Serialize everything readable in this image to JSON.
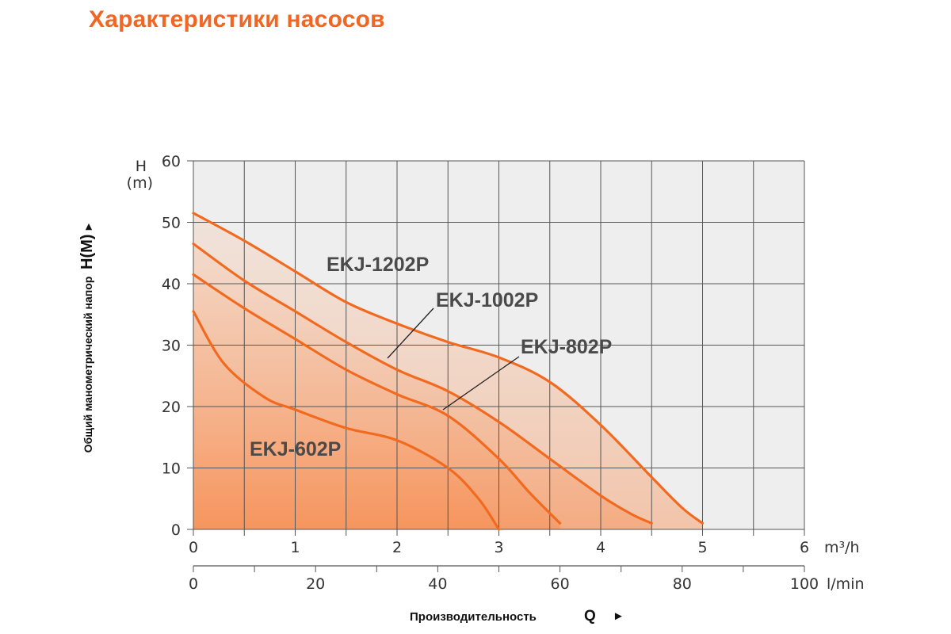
{
  "page": {
    "title": "Характеристики насосов"
  },
  "colors": {
    "title": "#f26522",
    "curve": "#f26a1f",
    "grid": "#555555",
    "plot_bg": "#eeeeee",
    "label": "#4a4a4a"
  },
  "chart_data": {
    "type": "line",
    "title": "",
    "ylabel_unit_h": "H",
    "ylabel_unit_m": "(m)",
    "ylabel": "Общий манометрический напор",
    "ylabel_symbol": "H(M)",
    "ylabel_arrow": "►",
    "xlabel": "Производительность",
    "xlabel_symbol": "Q",
    "xlabel_arrow": "►",
    "x_unit_primary": "m³/h",
    "x_unit_secondary": "l/min",
    "xlim": [
      0,
      6
    ],
    "ylim": [
      0,
      60
    ],
    "x_ticks": [
      "0",
      "1",
      "2",
      "3",
      "4",
      "5",
      "6"
    ],
    "x_secondary_ticks": [
      "0",
      "20",
      "40",
      "60",
      "80",
      "100"
    ],
    "x_secondary_values": [
      0,
      20,
      40,
      60,
      80,
      100
    ],
    "y_ticks": [
      "0",
      "10",
      "20",
      "30",
      "40",
      "50",
      "60"
    ],
    "y_tick_values": [
      0,
      10,
      20,
      30,
      40,
      50,
      60
    ],
    "grid": true,
    "series": [
      {
        "name": "EKJ-1202P",
        "x": [
          0,
          0.5,
          1,
          1.5,
          2,
          2.5,
          3,
          3.5,
          4,
          4.5,
          4.8,
          5.0
        ],
        "y": [
          51.5,
          47,
          42,
          37,
          33.5,
          30.5,
          28,
          24,
          17,
          8.5,
          3.5,
          1
        ]
      },
      {
        "name": "EKJ-1002P",
        "x": [
          0,
          0.5,
          1,
          1.5,
          2,
          2.5,
          3,
          3.5,
          4,
          4.3,
          4.5
        ],
        "y": [
          46.5,
          40.5,
          35.5,
          30.5,
          26,
          22.5,
          17.5,
          11.5,
          5.5,
          2.5,
          1
        ]
      },
      {
        "name": "EKJ-802P",
        "x": [
          0,
          0.5,
          1,
          1.5,
          2,
          2.5,
          3,
          3.3,
          3.6
        ],
        "y": [
          41.5,
          36,
          31,
          26,
          22,
          18.5,
          11.5,
          6,
          1
        ]
      },
      {
        "name": "EKJ-602P",
        "x": [
          0,
          0.3,
          0.7,
          1,
          1.5,
          2,
          2.5,
          2.8,
          3.0
        ],
        "y": [
          35.5,
          27,
          21.5,
          19.5,
          16.5,
          14.5,
          10,
          5,
          0
        ]
      }
    ]
  }
}
